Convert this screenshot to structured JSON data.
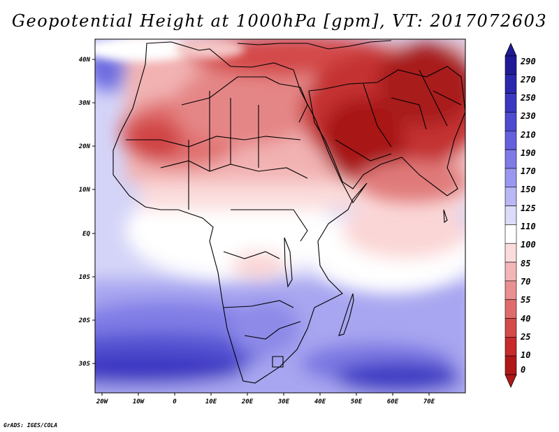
{
  "title": "Geopotential Height at 1000hPa [gpm], VT: 2017072603",
  "credit": "GrADS: IGES/COLA",
  "map": {
    "region": "Africa and Middle East",
    "lon_range": [
      -23,
      80
    ],
    "lat_range": [
      -37,
      46
    ],
    "x_ticks": [
      "20W",
      "10W",
      "0",
      "10E",
      "20E",
      "30E",
      "40E",
      "50E",
      "60E",
      "70E"
    ],
    "y_ticks": [
      "40N",
      "30N",
      "20N",
      "10N",
      "EQ",
      "10S",
      "20S",
      "30S"
    ]
  },
  "colorbar": {
    "labels": [
      "290",
      "270",
      "250",
      "230",
      "210",
      "190",
      "170",
      "150",
      "125",
      "110",
      "100",
      "85",
      "70",
      "55",
      "40",
      "25",
      "10",
      "0"
    ],
    "colors": [
      "#1f1a96",
      "#2a28ad",
      "#3a38c0",
      "#4d4bd0",
      "#6461dc",
      "#7e7be6",
      "#9a98ee",
      "#b9b8f4",
      "#dcdcfa",
      "#ffffff",
      "#fbdcdc",
      "#f3b6b6",
      "#e99090",
      "#df6c6c",
      "#d54a4a",
      "#c72a2a",
      "#b01818"
    ]
  }
}
